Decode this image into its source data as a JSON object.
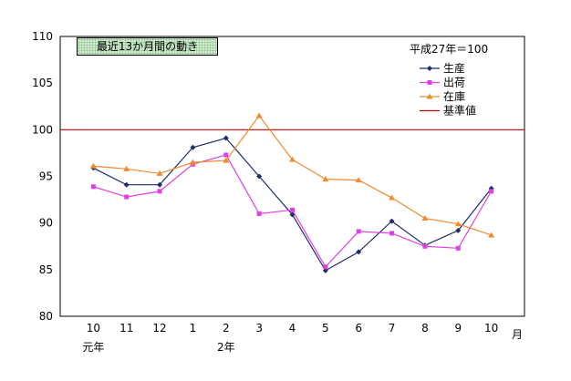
{
  "chart_data": {
    "type": "line",
    "title": "最近13か月間の動き",
    "note": "平成27年＝100",
    "categories": [
      "10",
      "11",
      "12",
      "1",
      "2",
      "3",
      "4",
      "5",
      "6",
      "7",
      "8",
      "9",
      "10"
    ],
    "x_unit": "月",
    "era_labels": [
      {
        "index": 0,
        "label": "元年"
      },
      {
        "index": 4,
        "label": "2年"
      }
    ],
    "ylim": [
      80,
      110
    ],
    "yticks": [
      80,
      85,
      90,
      95,
      100,
      105,
      110
    ],
    "series": [
      {
        "name": "生産",
        "color": "#1f2d6b",
        "marker": "diamond",
        "values": [
          95.9,
          94.1,
          94.1,
          98.1,
          99.1,
          95.0,
          90.9,
          84.9,
          86.9,
          90.2,
          87.6,
          89.2,
          93.7
        ]
      },
      {
        "name": "出荷",
        "color": "#e040e0",
        "marker": "square",
        "values": [
          93.9,
          92.8,
          93.4,
          96.3,
          97.3,
          91.0,
          91.4,
          85.3,
          89.1,
          88.9,
          87.5,
          87.3,
          93.4
        ]
      },
      {
        "name": "在庫",
        "color": "#f08a2c",
        "marker": "triangle",
        "values": [
          96.1,
          95.8,
          95.3,
          96.5,
          96.7,
          101.5,
          96.8,
          94.7,
          94.6,
          92.7,
          90.5,
          89.9,
          88.7
        ]
      }
    ],
    "reference": {
      "name": "基準値",
      "value": 100,
      "color": "#c00000"
    },
    "legend_position": "top-right",
    "grid": false
  }
}
